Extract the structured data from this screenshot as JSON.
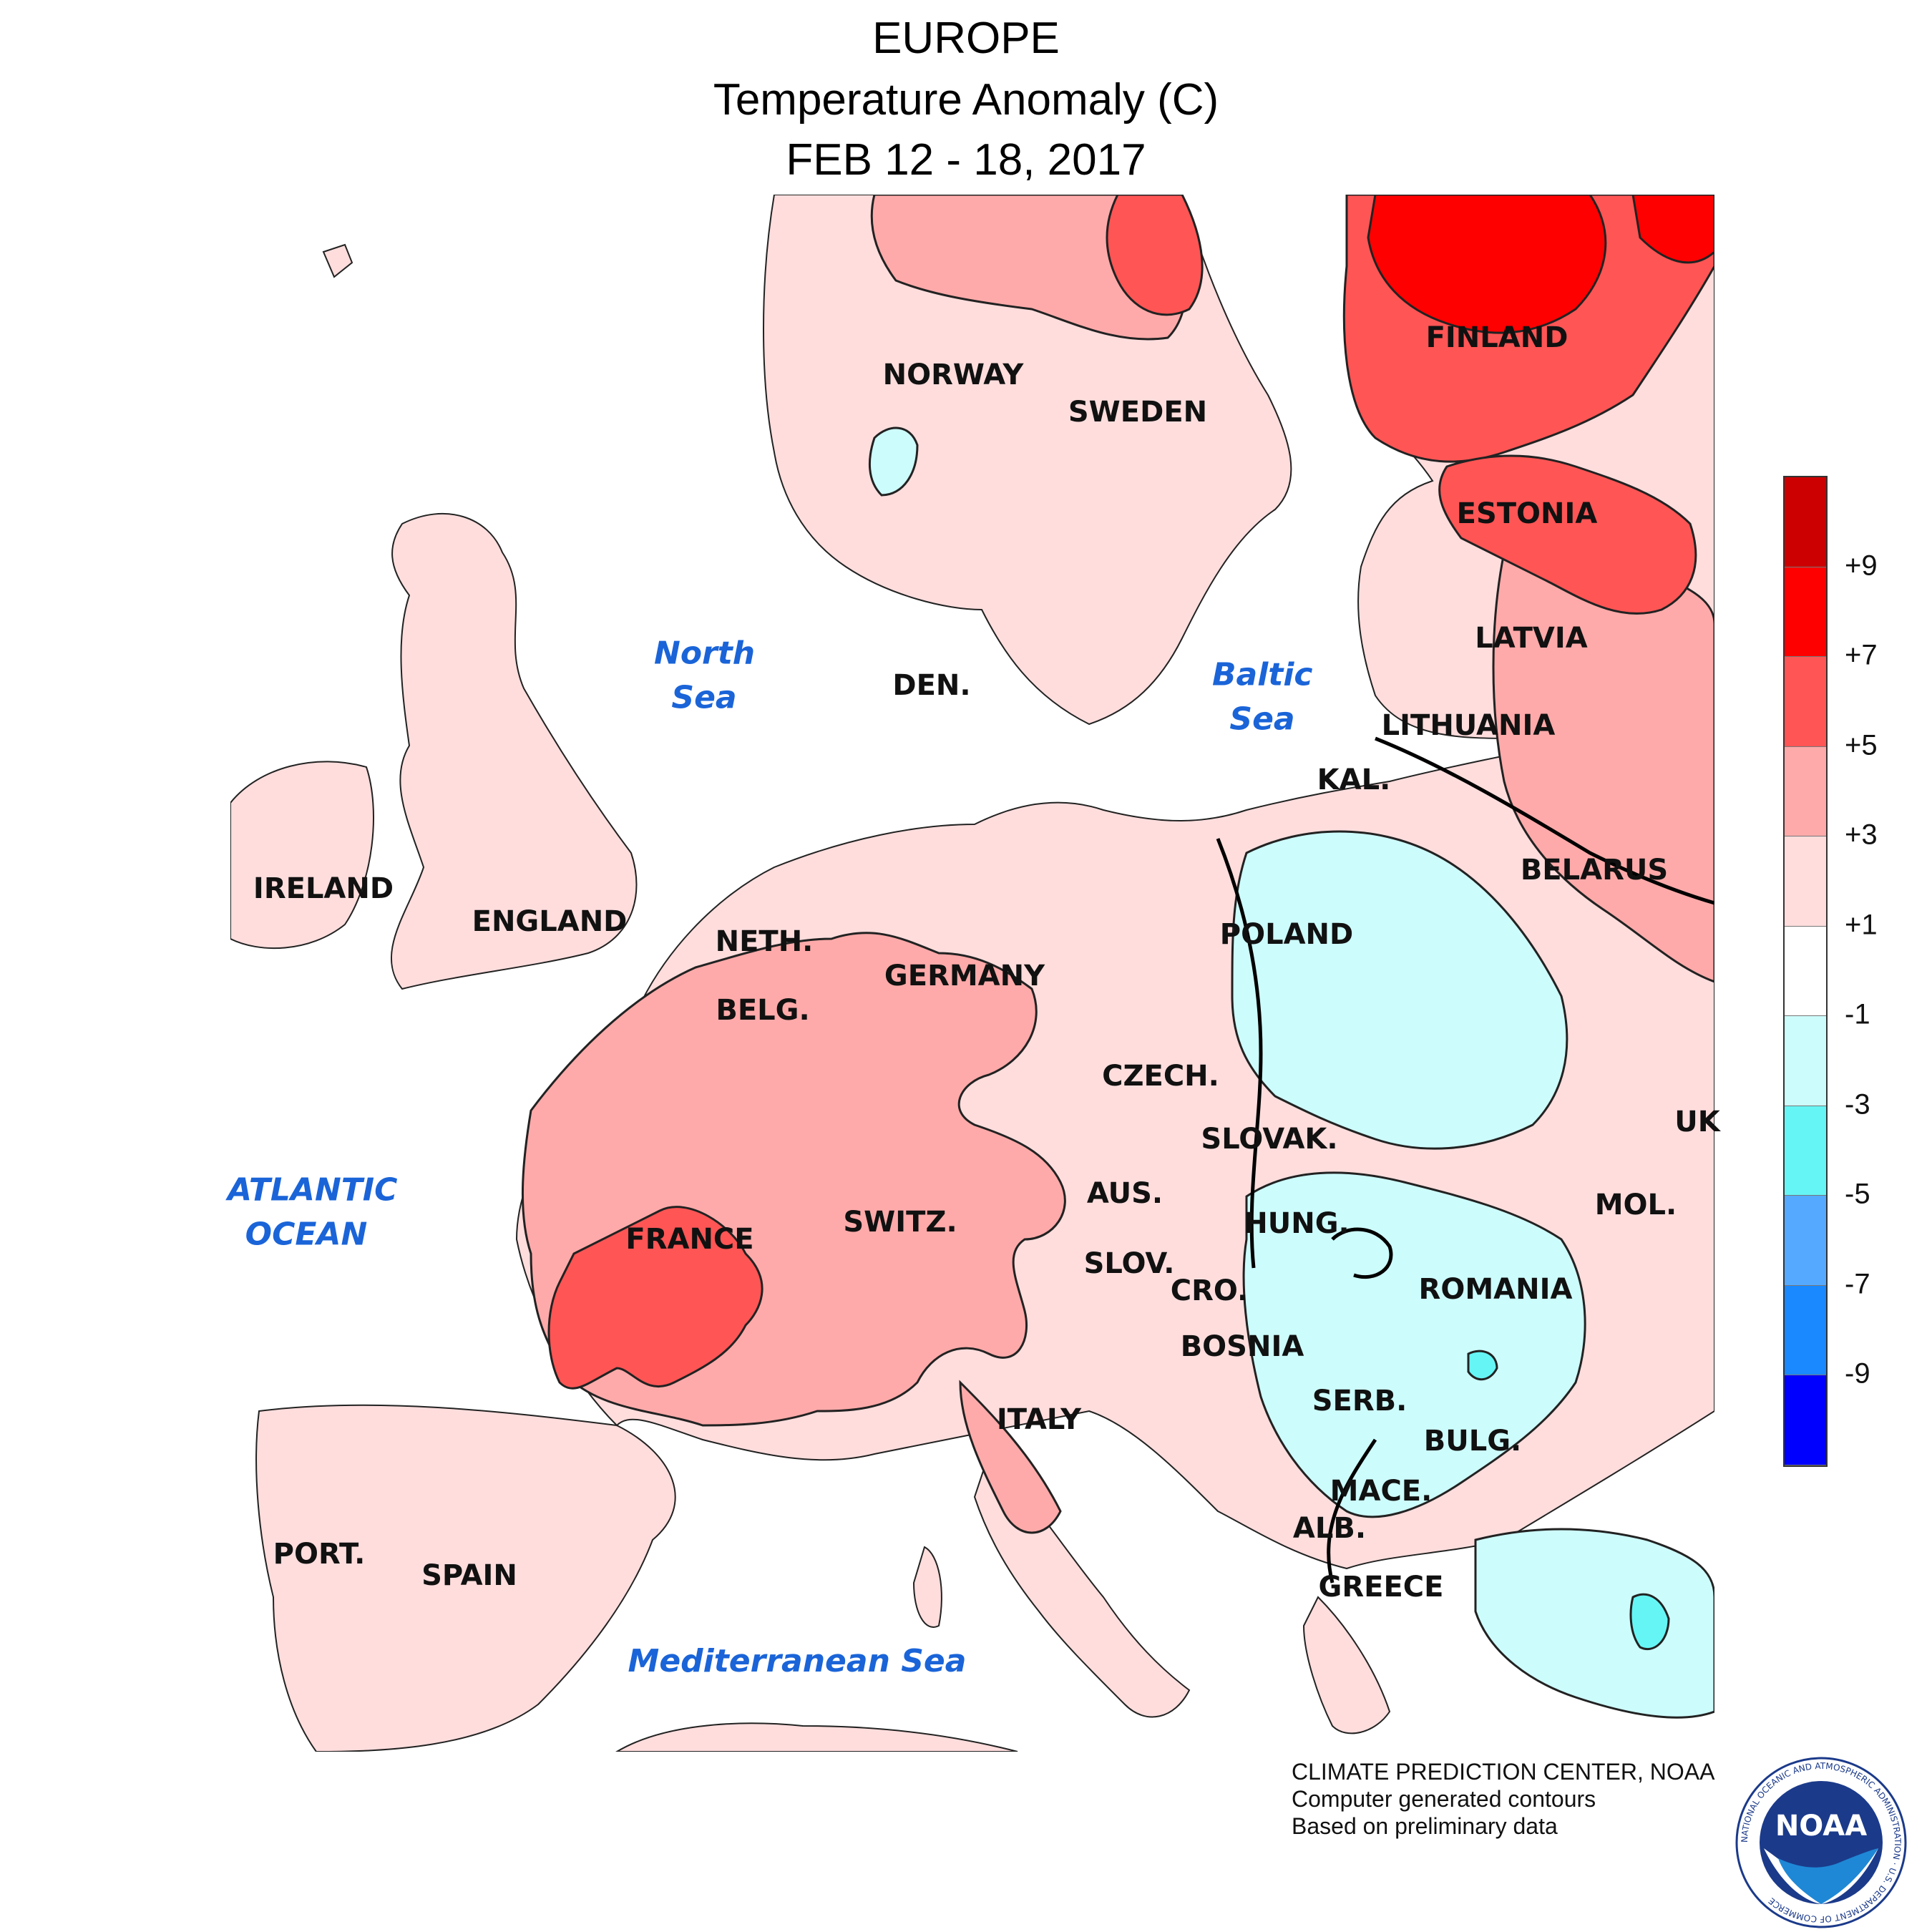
{
  "header": {
    "line1": "EUROPE",
    "line2": "Temperature Anomaly (C)",
    "line3": "FEB 12 - 18, 2017"
  },
  "countries": {
    "finland": "FINLAND",
    "norway": "NORWAY",
    "sweden": "SWEDEN",
    "estonia": "ESTONIA",
    "latvia": "LATVIA",
    "den": "DEN.",
    "lithuania": "LITHUANIA",
    "kal": "KAL.",
    "belarus": "BELARUS",
    "ireland": "IRELAND",
    "england": "ENGLAND",
    "neth": "NETH.",
    "poland": "POLAND",
    "germany": "GERMANY",
    "belg": "BELG.",
    "czech": "CZECH.",
    "uk": "UK",
    "slovak": "SLOVAK.",
    "aus": "AUS.",
    "mol": "MOL.",
    "hung": "HUNG.",
    "switz": "SWITZ.",
    "france": "FRANCE",
    "slov": "SLOV.",
    "cro": "CRO.",
    "romania": "ROMANIA",
    "bosnia": "BOSNIA",
    "serb": "SERB.",
    "italy": "ITALY",
    "bulg": "BULG.",
    "mace": "MACE.",
    "alb": "ALB.",
    "port": "PORT.",
    "spain": "SPAIN",
    "greece": "GREECE"
  },
  "seas": {
    "north_sea": "North Sea",
    "baltic_sea": "Baltic Sea",
    "atlantic_ocean": "ATLANTIC OCEAN",
    "mediterranean": "Mediterranean Sea"
  },
  "legend": {
    "colors": [
      "#cc0000",
      "#ff0000",
      "#ff5555",
      "#ffaaaa",
      "#ffdddd",
      "#ffffff",
      "#cdfcfc",
      "#66f5f5",
      "#55aaff",
      "#1a88ff",
      "#0000ff"
    ],
    "ticks": [
      "+9",
      "+7",
      "+5",
      "+3",
      "+1",
      "-1",
      "-3",
      "-5",
      "-7",
      "-9"
    ]
  },
  "credits": {
    "line1": "CLIMATE PREDICTION CENTER, NOAA",
    "line2": "Computer generated contours",
    "line3": "Based on preliminary data"
  },
  "logo": {
    "text": "NOAA",
    "ring_text": "NATIONAL OCEANIC AND ATMOSPHERIC ADMINISTRATION · U.S. DEPARTMENT OF COMMERCE"
  }
}
